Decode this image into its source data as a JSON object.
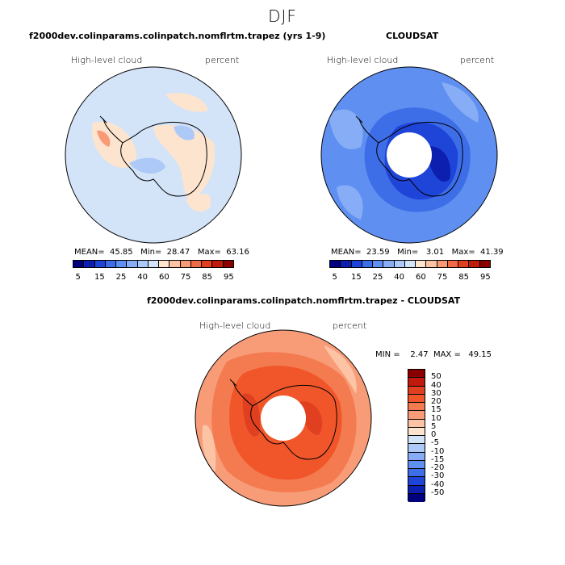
{
  "title": "DJF",
  "panels": [
    {
      "id": "model",
      "heading": "f2000dev.colinparams.colinpatch.nomflrtm.trapez (yrs 1-9)",
      "variable": "High-level cloud",
      "units": "percent",
      "stats": "MEAN=  45.85   Min=  28.47   Max=  63.16",
      "colorbar": {
        "colors": [
          "#00007f",
          "#0c1fae",
          "#1f44d8",
          "#3d6ee8",
          "#5f8ff0",
          "#86adf5",
          "#adc9f7",
          "#d3e3f8",
          "#fde4cf",
          "#fcc3a5",
          "#f89a76",
          "#f06b45",
          "#e04020",
          "#c01a0c",
          "#8a0000"
        ],
        "labels": [
          "5",
          "15",
          "25",
          "40",
          "60",
          "75",
          "85",
          "95"
        ]
      }
    },
    {
      "id": "obs",
      "heading": "CLOUDSAT",
      "variable": "High-level cloud",
      "units": "percent",
      "stats": "MEAN=  23.59   Min=   3.01   Max=  41.39",
      "colorbar": {
        "colors": [
          "#00007f",
          "#0c1fae",
          "#1f44d8",
          "#3d6ee8",
          "#5f8ff0",
          "#86adf5",
          "#adc9f7",
          "#d3e3f8",
          "#fde4cf",
          "#fcc3a5",
          "#f89a76",
          "#f06b45",
          "#e04020",
          "#c01a0c",
          "#8a0000"
        ],
        "labels": [
          "5",
          "15",
          "25",
          "40",
          "60",
          "75",
          "85",
          "95"
        ]
      }
    },
    {
      "id": "diff",
      "heading": "f2000dev.colinparams.colinpatch.nomflrtm.trapez - CLOUDSAT",
      "variable": "High-level cloud",
      "units": "percent",
      "stats": "MIN =    2.47  MAX =   49.15",
      "colorbar": {
        "colors": [
          "#8a0000",
          "#c01a0c",
          "#e04020",
          "#f0562a",
          "#f47a50",
          "#f89c78",
          "#fcc3a5",
          "#fde4cf",
          "#d3e3f8",
          "#adc9f7",
          "#86adf5",
          "#5f8ff0",
          "#3d6ee8",
          "#1f44d8",
          "#0c1fae",
          "#00007f"
        ],
        "labels": [
          "50",
          "40",
          "30",
          "20",
          "15",
          "10",
          "5",
          "0",
          "-5",
          "-10",
          "-15",
          "-20",
          "-30",
          "-40",
          "-50"
        ]
      }
    }
  ]
}
